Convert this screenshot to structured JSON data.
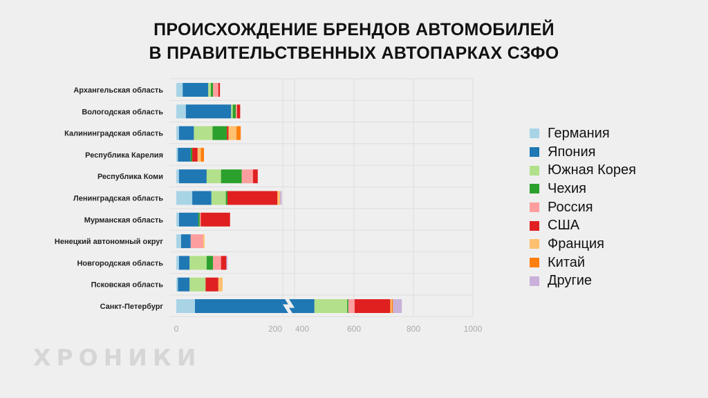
{
  "title_lines": [
    "ПРОИСХОЖДЕНИЕ БРЕНДОВ АВТОМОБИЛЕЙ",
    "В ПРАВИТЕЛЬСТВЕННЫХ АВТОПАРКАХ СЗФО"
  ],
  "brand": "ХРОНИКИ",
  "chart_data": {
    "type": "bar",
    "orientation": "horizontal",
    "stacked": true,
    "axis_break": {
      "from": 200,
      "to": 400
    },
    "xticks": [
      0,
      200,
      400,
      600,
      800,
      1000
    ],
    "xlim": [
      0,
      1000
    ],
    "grid": true,
    "legend_position": "right",
    "categories": [
      "Архангельская область",
      "Вологодская область",
      "Калининградская область",
      "Республика Карелия",
      "Республика Коми",
      "Ленинградская область",
      "Мурманская область",
      "Ненецкий автономный округ",
      "Новгородская область",
      "Псковская область",
      "Санкт-Петербург"
    ],
    "series": [
      {
        "name": "Германия",
        "color": "#a8d4e6",
        "values": [
          12,
          18,
          5,
          3,
          5,
          30,
          5,
          9,
          5,
          3,
          35
        ]
      },
      {
        "name": "Япония",
        "color": "#1f77b4",
        "values": [
          48,
          85,
          28,
          24,
          52,
          36,
          36,
          18,
          20,
          22,
          432
        ]
      },
      {
        "name": "Южная Корея",
        "color": "#b3e08a",
        "values": [
          5,
          3,
          35,
          0,
          27,
          27,
          0,
          0,
          32,
          30,
          110
        ]
      },
      {
        "name": "Чехия",
        "color": "#2ca02c",
        "values": [
          4,
          6,
          27,
          3,
          39,
          3,
          3,
          0,
          12,
          0,
          4
        ]
      },
      {
        "name": "Россия",
        "color": "#ff9e9e",
        "values": [
          10,
          2,
          0,
          0,
          21,
          0,
          2,
          23,
          15,
          0,
          21
        ]
      },
      {
        "name": "США",
        "color": "#e02020",
        "values": [
          3,
          6,
          3,
          10,
          9,
          94,
          55,
          0,
          10,
          24,
          120
        ]
      },
      {
        "name": "Франция",
        "color": "#ffc070",
        "values": [
          0,
          0,
          15,
          6,
          0,
          5,
          0,
          3,
          0,
          8,
          5
        ]
      },
      {
        "name": "Китай",
        "color": "#ff7f0e",
        "values": [
          0,
          0,
          8,
          6,
          0,
          0,
          0,
          0,
          0,
          0,
          4
        ]
      },
      {
        "name": "Другие",
        "color": "#c9b1d9",
        "values": [
          0,
          0,
          0,
          0,
          0,
          3,
          0,
          0,
          2,
          0,
          30
        ]
      }
    ]
  }
}
